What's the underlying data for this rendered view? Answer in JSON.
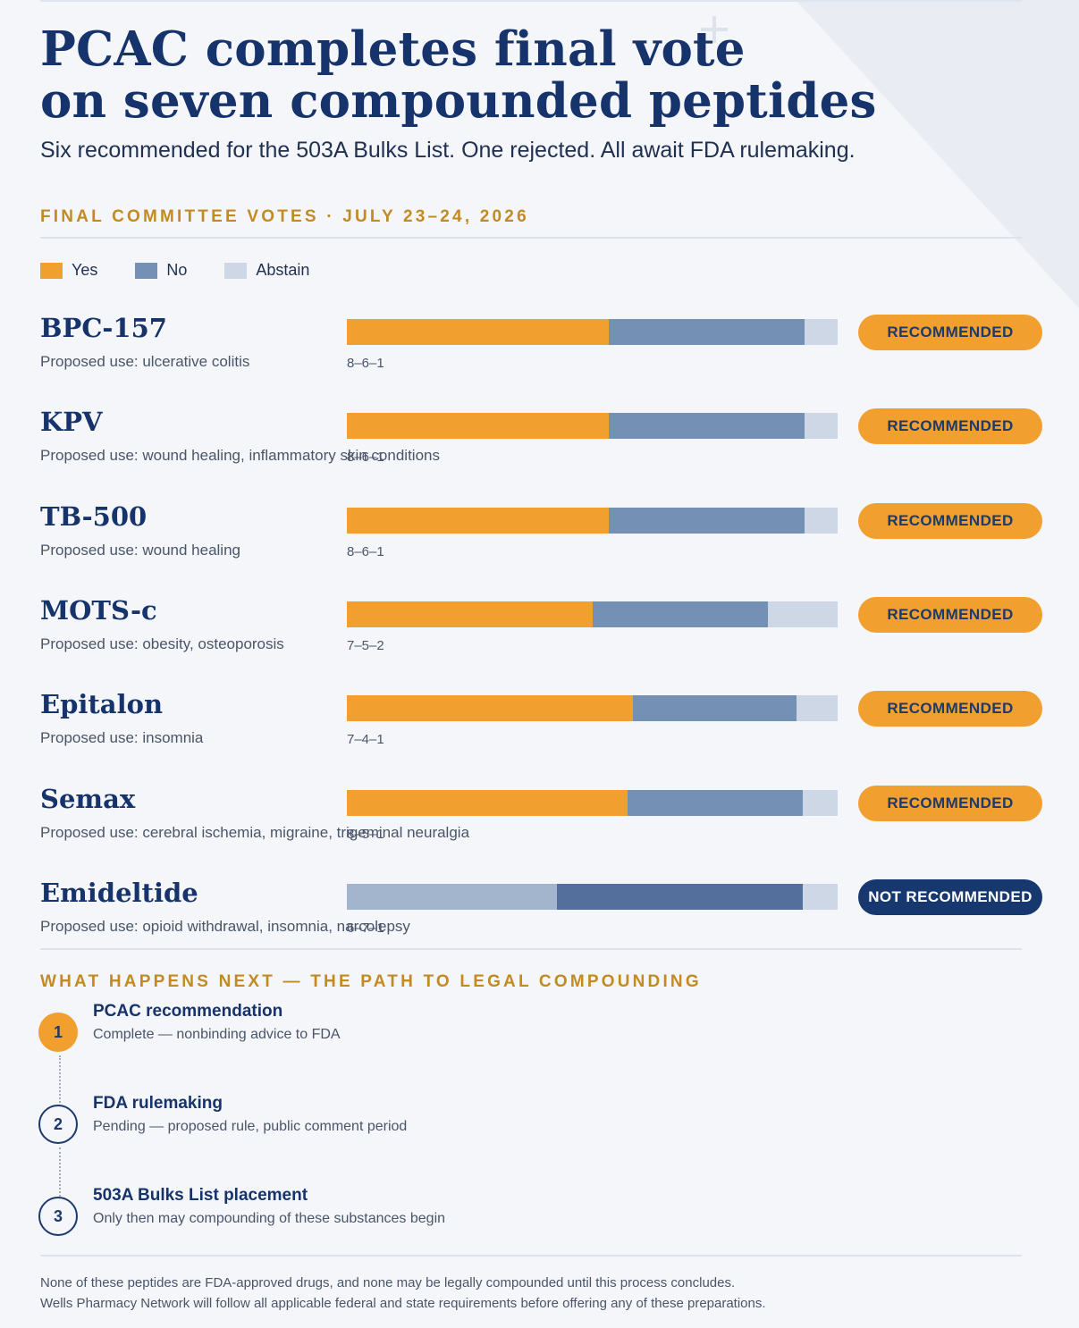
{
  "header": {
    "title_line1": "PCAC completes final vote",
    "title_line2": "on seven compounded peptides",
    "subtitle": "Six recommended for the 503A Bulks List. One rejected. All await FDA rulemaking."
  },
  "votes_section": {
    "label": "FINAL COMMITTEE VOTES · JULY 23–24, 2026"
  },
  "legend": {
    "yes": "Yes",
    "no": "No",
    "abstain": "Abstain"
  },
  "colors": {
    "yes": "#f1a02f",
    "no": "#7590b5",
    "abstain": "#cdd7e5",
    "rejected_yes": "#a3b4cd",
    "rejected_no": "#546f9b",
    "recommended_badge": "#f1a02f",
    "not_recommended_badge": "#17386e",
    "accent_label": "#c48a22",
    "title": "#16336b"
  },
  "chart_data": {
    "type": "bar",
    "stacked": true,
    "orientation": "horizontal",
    "categories": [
      "BPC-157",
      "KPV",
      "TB-500",
      "MOTS-c",
      "Epitalon",
      "Semax",
      "Emideltide"
    ],
    "series": [
      {
        "name": "Yes",
        "values": [
          8,
          8,
          8,
          7,
          7,
          8,
          6
        ]
      },
      {
        "name": "No",
        "values": [
          6,
          6,
          6,
          5,
          4,
          5,
          7
        ]
      },
      {
        "name": "Abstain",
        "values": [
          1,
          1,
          1,
          2,
          1,
          1,
          1
        ]
      }
    ],
    "rows": [
      {
        "name": "BPC-157",
        "use": "Proposed use: ulcerative colitis",
        "yes": 8,
        "no": 6,
        "abstain": 1,
        "tally": "8–6–1",
        "status": "RECOMMENDED",
        "recommended": true
      },
      {
        "name": "KPV",
        "use": "Proposed use: wound healing, inflammatory skin conditions",
        "yes": 8,
        "no": 6,
        "abstain": 1,
        "tally": "8–6–1",
        "status": "RECOMMENDED",
        "recommended": true
      },
      {
        "name": "TB-500",
        "use": "Proposed use: wound healing",
        "yes": 8,
        "no": 6,
        "abstain": 1,
        "tally": "8–6–1",
        "status": "RECOMMENDED",
        "recommended": true
      },
      {
        "name": "MOTS-c",
        "use": "Proposed use: obesity, osteoporosis",
        "yes": 7,
        "no": 5,
        "abstain": 2,
        "tally": "7–5–2",
        "status": "RECOMMENDED",
        "recommended": true
      },
      {
        "name": "Epitalon",
        "use": "Proposed use: insomnia",
        "yes": 7,
        "no": 4,
        "abstain": 1,
        "tally": "7–4–1",
        "status": "RECOMMENDED",
        "recommended": true
      },
      {
        "name": "Semax",
        "use": "Proposed use: cerebral ischemia, migraine, trigeminal neuralgia",
        "yes": 8,
        "no": 5,
        "abstain": 1,
        "tally": "8–5–1",
        "status": "RECOMMENDED",
        "recommended": true
      },
      {
        "name": "Emideltide",
        "use": "Proposed use: opioid withdrawal, insomnia, narcolepsy",
        "yes": 6,
        "no": 7,
        "abstain": 1,
        "tally": "6–7–1",
        "status": "NOT RECOMMENDED",
        "recommended": false
      }
    ]
  },
  "next_section": {
    "label": "WHAT HAPPENS NEXT — THE PATH TO LEGAL COMPOUNDING",
    "steps": [
      {
        "number": "1",
        "title": "PCAC recommendation",
        "desc": "Complete — nonbinding advice to FDA",
        "complete": true
      },
      {
        "number": "2",
        "title": "FDA rulemaking",
        "desc": "Pending — proposed rule, public comment period",
        "complete": false
      },
      {
        "number": "3",
        "title": "503A Bulks List placement",
        "desc": "Only then may compounding of these substances begin",
        "complete": false
      }
    ]
  },
  "footer": {
    "line1": "None of these peptides are FDA-approved drugs, and none may be legally compounded until this process concludes.",
    "line2": "Wells Pharmacy Network will follow all applicable federal and state requirements before offering any of these preparations."
  }
}
